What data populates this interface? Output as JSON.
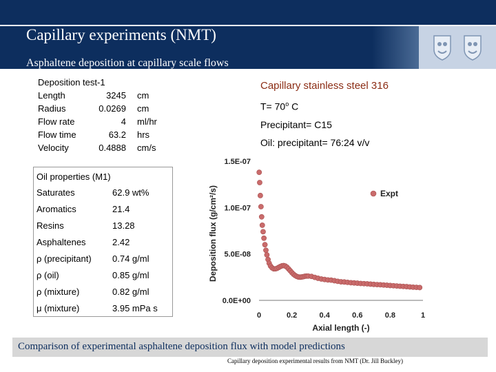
{
  "slide": {
    "title": "Capillary experiments (NMT)",
    "subtitle": "Asphaltene deposition at capillary scale flows",
    "deposition_test": {
      "heading": "Deposition test-1",
      "rows": [
        {
          "label": "Length",
          "value": "3245",
          "unit": "cm"
        },
        {
          "label": "Radius",
          "value": "0.0269",
          "unit": "cm"
        },
        {
          "label": "Flow rate",
          "value": "4",
          "unit": "ml/hr"
        },
        {
          "label": "Flow time",
          "value": "63.2",
          "unit": "hrs"
        },
        {
          "label": "Velocity",
          "value": "0.4888",
          "unit": "cm/s"
        }
      ]
    },
    "conditions": {
      "material": "Capillary stainless steel 316",
      "temperature_prefix": "T=  70",
      "temperature_sup": "o",
      "temperature_unit": " C",
      "precipitant": "Precipitant= C15",
      "ratio": "Oil: precipitant= 76:24 v/v"
    },
    "oil_properties": {
      "heading": "Oil properties (M1)",
      "rows": [
        {
          "label": "Saturates",
          "value": "62.9 wt%"
        },
        {
          "label": "Aromatics",
          "value": "21.4"
        },
        {
          "label": "Resins",
          "value": "13.28"
        },
        {
          "label": "Asphaltenes",
          "value": "2.42"
        },
        {
          "label": "ρ (precipitant)",
          "value": "0.74 g/ml"
        },
        {
          "label": "ρ (oil)",
          "value": "0.85 g/ml"
        },
        {
          "label": "ρ (mixture)",
          "value": "0.82 g/ml"
        },
        {
          "label": "μ (mixture)",
          "value": "3.95 mPa s"
        }
      ]
    },
    "footer": "Comparison of experimental asphaltene deposition flux with model predictions",
    "credit": "Capillary deposition experimental results from NMT (Dr. Jill Buckley)"
  },
  "chart_data": {
    "type": "scatter",
    "title": "",
    "xlabel": "Axial length (-)",
    "ylabel": "Deposition flux (g/cm²/s)",
    "xlim": [
      0,
      1
    ],
    "ylim": [
      0,
      1.5e-07
    ],
    "x_ticks": [
      "0",
      "0.2",
      "0.4",
      "0.6",
      "0.8",
      "1"
    ],
    "y_ticks": [
      "0.0E+00",
      "5.0E-08",
      "1.0E-07",
      "1.5E-07"
    ],
    "legend": "Expt",
    "legend_position": "top-right",
    "marker_color": "#c96b6b",
    "series": [
      {
        "name": "Expt",
        "x": [
          0.001,
          0.004,
          0.008,
          0.012,
          0.016,
          0.02,
          0.025,
          0.03,
          0.036,
          0.042,
          0.048,
          0.055,
          0.062,
          0.07,
          0.08,
          0.09,
          0.1,
          0.11,
          0.12,
          0.13,
          0.14,
          0.15,
          0.16,
          0.17,
          0.18,
          0.19,
          0.2,
          0.21,
          0.22,
          0.23,
          0.24,
          0.25,
          0.26,
          0.27,
          0.28,
          0.29,
          0.3,
          0.32,
          0.34,
          0.36,
          0.38,
          0.4,
          0.42,
          0.44,
          0.46,
          0.48,
          0.5,
          0.52,
          0.54,
          0.56,
          0.58,
          0.6,
          0.62,
          0.64,
          0.66,
          0.68,
          0.7,
          0.72,
          0.74,
          0.76,
          0.78,
          0.8,
          0.82,
          0.84,
          0.86,
          0.88,
          0.9,
          0.92,
          0.94,
          0.96,
          0.98
        ],
        "y": [
          1.38e-07,
          1.27e-07,
          1.13e-07,
          1.01e-07,
          9e-08,
          8.1e-08,
          7.4e-08,
          6.7e-08,
          6e-08,
          5.4e-08,
          4.9e-08,
          4.4e-08,
          4e-08,
          3.7e-08,
          3.5e-08,
          3.4e-08,
          3.4e-08,
          3.45e-08,
          3.55e-08,
          3.65e-08,
          3.72e-08,
          3.75e-08,
          3.7e-08,
          3.58e-08,
          3.4e-08,
          3.2e-08,
          3e-08,
          2.82e-08,
          2.68e-08,
          2.58e-08,
          2.52e-08,
          2.5e-08,
          2.52e-08,
          2.55e-08,
          2.6e-08,
          2.62e-08,
          2.62e-08,
          2.58e-08,
          2.48e-08,
          2.38e-08,
          2.3e-08,
          2.25e-08,
          2.2e-08,
          2.18e-08,
          2.12e-08,
          2.05e-08,
          2e-08,
          1.98e-08,
          1.94e-08,
          1.9e-08,
          1.88e-08,
          1.85e-08,
          1.82e-08,
          1.8e-08,
          1.78e-08,
          1.75e-08,
          1.72e-08,
          1.7e-08,
          1.68e-08,
          1.65e-08,
          1.63e-08,
          1.6e-08,
          1.58e-08,
          1.55e-08,
          1.52e-08,
          1.5e-08,
          1.48e-08,
          1.45e-08,
          1.42e-08,
          1.4e-08,
          1.38e-08
        ]
      }
    ]
  }
}
